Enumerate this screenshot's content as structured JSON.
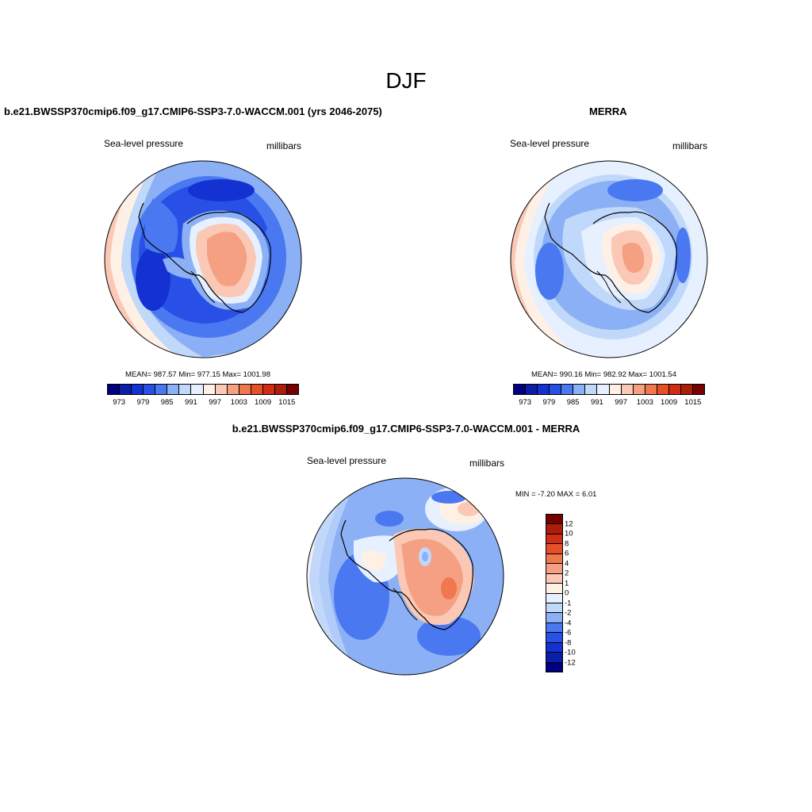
{
  "title": "DJF",
  "panels": {
    "model": {
      "title": "b.e21.BWSSP370cmip6.f09_g17.CMIP6-SSP3-7.0-WACCM.001 (yrs 2046-2075)",
      "variable": "Sea-level pressure",
      "units": "millibars",
      "stats": "MEAN= 987.57   Min= 977.15   Max= 1001.98"
    },
    "obs": {
      "title": "MERRA",
      "variable": "Sea-level pressure",
      "units": "millibars",
      "stats": "MEAN= 990.16   Min= 982.92   Max= 1001.54"
    },
    "diff": {
      "title": "b.e21.BWSSP370cmip6.f09_g17.CMIP6-SSP3-7.0-WACCM.001 - MERRA",
      "variable": "Sea-level pressure",
      "units": "millibars",
      "minmax": "MIN =  -7.20 MAX =   6.01"
    }
  },
  "abs_colorbar": {
    "colors": [
      "#000080",
      "#0a1ea8",
      "#1432d2",
      "#2850e6",
      "#4a78f0",
      "#8cb0f5",
      "#c0d8fa",
      "#e6f0ff",
      "#fff0e6",
      "#fac8b4",
      "#f5a082",
      "#f0784e",
      "#e65028",
      "#d22d14",
      "#aa1e0a",
      "#780000"
    ],
    "tick_labels": [
      "973",
      "979",
      "985",
      "991",
      "997",
      "1003",
      "1009",
      "1015"
    ]
  },
  "diff_colorbar": {
    "colors": [
      "#000080",
      "#0a1ea8",
      "#1432d2",
      "#2850e6",
      "#4a78f0",
      "#8cb0f5",
      "#c0d8fa",
      "#e6f0ff",
      "#fff0e6",
      "#fac8b4",
      "#f5a082",
      "#f0784e",
      "#e65028",
      "#d22d14",
      "#aa1e0a",
      "#780000"
    ],
    "tick_labels": [
      "12",
      "10",
      "8",
      "6",
      "4",
      "2",
      "1",
      "0",
      "-1",
      "-2",
      "-4",
      "-6",
      "-8",
      "-10",
      "-12"
    ]
  }
}
